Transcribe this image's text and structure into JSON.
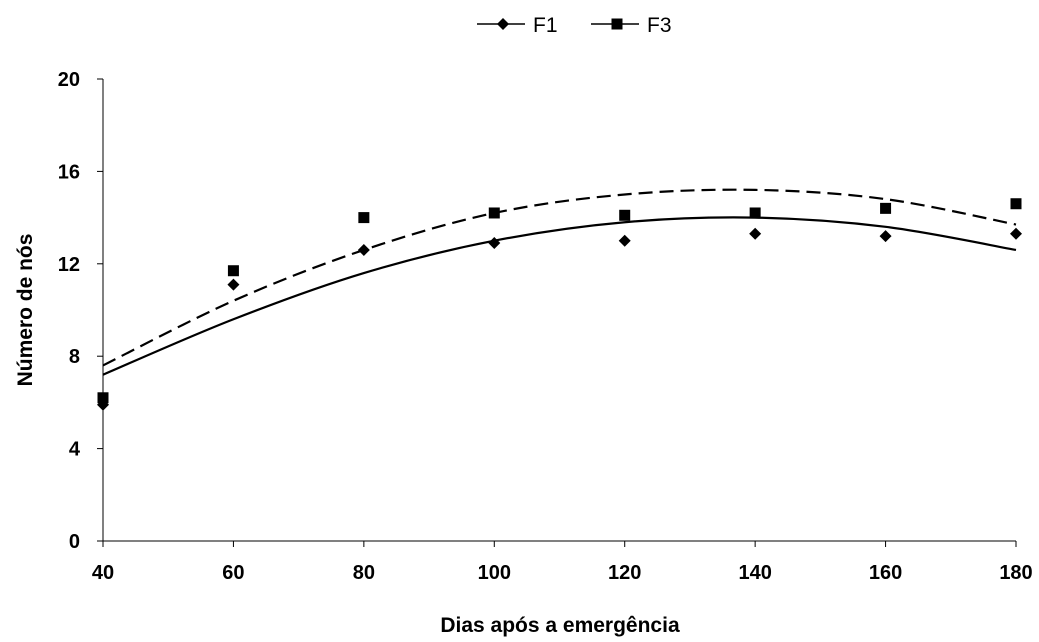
{
  "chart_data": {
    "type": "scatter",
    "title": "",
    "xlabel": "Dias após a emergência",
    "ylabel": "Número de nós",
    "xlim": [
      40,
      180
    ],
    "ylim": [
      0,
      20
    ],
    "x_ticks": [
      "40",
      "60",
      "80",
      "100",
      "120",
      "140",
      "160",
      "180"
    ],
    "y_ticks": [
      "0",
      "4",
      "8",
      "12",
      "16",
      "20"
    ],
    "grid": false,
    "legend_position": "top-center",
    "x": [
      40,
      60,
      80,
      100,
      120,
      140,
      160,
      180
    ],
    "series": [
      {
        "name": "F1",
        "marker": "diamond",
        "trend_line": "solid",
        "color": "#000000",
        "values": [
          5.9,
          11.1,
          12.6,
          12.9,
          13.0,
          13.3,
          13.2,
          13.3
        ],
        "trend_values": [
          7.2,
          9.6,
          11.6,
          13.0,
          13.8,
          14.0,
          13.6,
          12.6
        ]
      },
      {
        "name": "F3",
        "marker": "square",
        "trend_line": "dashed",
        "color": "#000000",
        "values": [
          6.2,
          11.7,
          14.0,
          14.2,
          14.1,
          14.2,
          14.4,
          14.6
        ],
        "trend_values": [
          7.6,
          10.4,
          12.6,
          14.2,
          15.0,
          15.2,
          14.8,
          13.7
        ]
      }
    ]
  }
}
